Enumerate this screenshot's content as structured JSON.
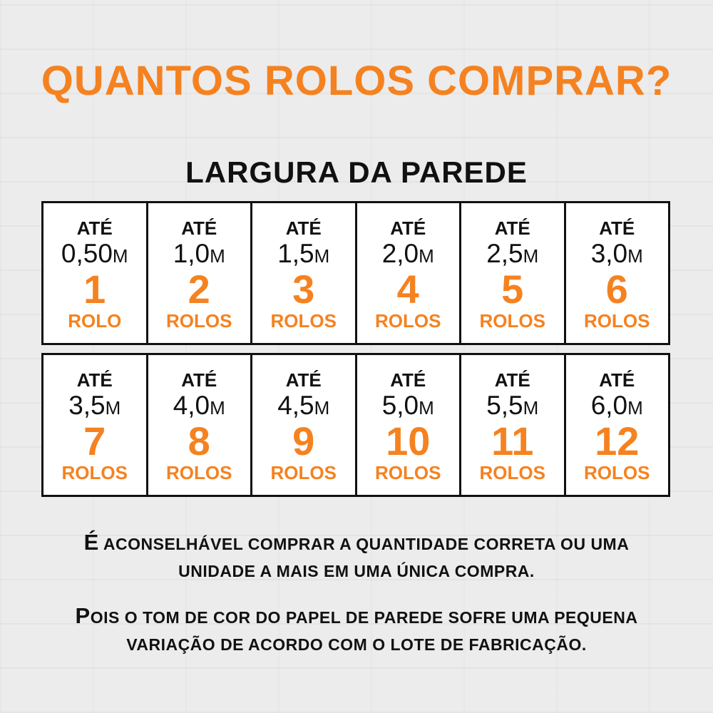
{
  "title": "QUANTOS ROLOS COMPRAR?",
  "subtitle": "LARGURA DA PAREDE",
  "colors": {
    "accent": "#f58220",
    "text": "#111111",
    "background": "#ececec"
  },
  "ate_label": "ATÉ",
  "unit_symbol": "M",
  "cells": [
    {
      "width": "0,50",
      "rolls": "1",
      "unit": "ROLO"
    },
    {
      "width": "1,0",
      "rolls": "2",
      "unit": "ROLOS"
    },
    {
      "width": "1,5",
      "rolls": "3",
      "unit": "ROLOS"
    },
    {
      "width": "2,0",
      "rolls": "4",
      "unit": "ROLOS"
    },
    {
      "width": "2,5",
      "rolls": "5",
      "unit": "ROLOS"
    },
    {
      "width": "3,0",
      "rolls": "6",
      "unit": "ROLOS"
    },
    {
      "width": "3,5",
      "rolls": "7",
      "unit": "ROLOS"
    },
    {
      "width": "4,0",
      "rolls": "8",
      "unit": "ROLOS"
    },
    {
      "width": "4,5",
      "rolls": "9",
      "unit": "ROLOS"
    },
    {
      "width": "5,0",
      "rolls": "10",
      "unit": "ROLOS"
    },
    {
      "width": "5,5",
      "rolls": "11",
      "unit": "ROLOS"
    },
    {
      "width": "6,0",
      "rolls": "12",
      "unit": "ROLOS"
    }
  ],
  "notes": [
    {
      "first": "É",
      "line1": " ACONSELHÁVEL COMPRAR A QUANTIDADE CORRETA OU UMA",
      "line2": "UNIDADE A MAIS EM UMA ÚNICA COMPRA."
    },
    {
      "first": "P",
      "line1": "OIS O TOM DE COR DO PAPEL DE PAREDE SOFRE UMA PEQUENA",
      "line2": "VARIAÇÃO DE ACORDO COM O LOTE DE FABRICAÇÃO."
    }
  ]
}
